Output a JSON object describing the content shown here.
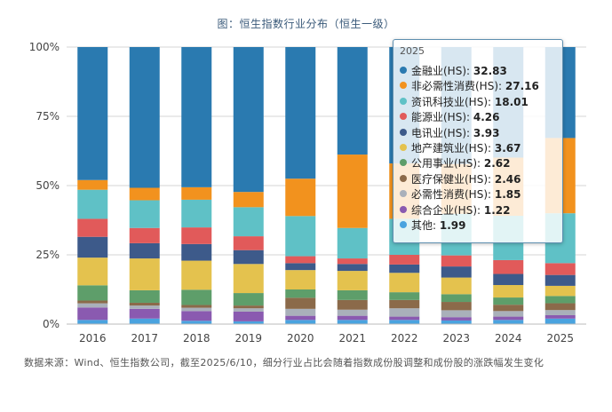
{
  "chart_data": {
    "type": "bar",
    "stacked": true,
    "percent": true,
    "title": "图：恒生指数行业分布（恒生一级）",
    "categories": [
      "2016",
      "2017",
      "2018",
      "2019",
      "2020",
      "2021",
      "2022",
      "2023",
      "2024",
      "2025"
    ],
    "ylim": [
      0,
      100
    ],
    "yticks": [
      "0%",
      "25%",
      "50%",
      "75%",
      "100%"
    ],
    "grid": true,
    "series": [
      {
        "name": "其他",
        "color": "#4aa3df",
        "values": [
          1.5,
          2.0,
          1.2,
          1.0,
          1.5,
          1.5,
          1.5,
          1.3,
          1.5,
          1.99
        ]
      },
      {
        "name": "综合企业",
        "color": "#8a5ab0",
        "values": [
          4.5,
          3.5,
          3.5,
          3.5,
          1.5,
          1.5,
          1.2,
          1.2,
          1.2,
          1.22
        ]
      },
      {
        "name": "必需性消费",
        "color": "#a9b0ba",
        "values": [
          1.5,
          1.2,
          1.2,
          1.2,
          2.5,
          2.2,
          3.0,
          2.5,
          2.0,
          1.85
        ]
      },
      {
        "name": "医疗保健业",
        "color": "#8b6a4a",
        "values": [
          1.0,
          1.0,
          1.0,
          1.0,
          4.0,
          3.5,
          3.0,
          3.0,
          2.3,
          2.46
        ]
      },
      {
        "name": "公用事业",
        "color": "#5e9e6a",
        "values": [
          5.5,
          4.5,
          5.5,
          4.5,
          3.0,
          3.5,
          2.8,
          2.8,
          2.6,
          2.62
        ]
      },
      {
        "name": "地产建筑业",
        "color": "#e4c24e",
        "values": [
          10.0,
          11.5,
          10.5,
          10.5,
          7.0,
          7.0,
          7.0,
          6.0,
          4.5,
          3.67
        ]
      },
      {
        "name": "电讯业",
        "color": "#3d5a8a",
        "values": [
          7.5,
          5.5,
          6.0,
          5.0,
          2.5,
          2.5,
          3.0,
          4.0,
          4.0,
          3.93
        ]
      },
      {
        "name": "能源业",
        "color": "#e15a5a",
        "values": [
          6.5,
          5.5,
          6.0,
          5.0,
          2.5,
          2.0,
          3.5,
          4.0,
          5.0,
          4.26
        ]
      },
      {
        "name": "资讯科技业",
        "color": "#5fc1c6",
        "values": [
          10.5,
          10.0,
          10.0,
          10.5,
          14.5,
          11.0,
          13.0,
          15.0,
          16.0,
          18.01
        ]
      },
      {
        "name": "非必需性消费",
        "color": "#f2921e",
        "values": [
          3.5,
          4.5,
          4.5,
          5.5,
          13.5,
          26.5,
          20.0,
          18.0,
          21.0,
          27.16
        ]
      },
      {
        "name": "金融业",
        "color": "#2a7ab0",
        "values": [
          48.0,
          50.8,
          50.6,
          52.3,
          47.5,
          38.8,
          42.0,
          42.2,
          39.9,
          32.83
        ]
      }
    ]
  },
  "tooltip": {
    "title": "2025",
    "items": [
      {
        "label": "金融业(HS)",
        "value": "32.83",
        "color": "#2a7ab0"
      },
      {
        "label": "非必需性消费(HS)",
        "value": "27.16",
        "color": "#f2921e"
      },
      {
        "label": "资讯科技业(HS)",
        "value": "18.01",
        "color": "#5fc1c6"
      },
      {
        "label": "能源业(HS)",
        "value": "4.26",
        "color": "#e15a5a"
      },
      {
        "label": "电讯业(HS)",
        "value": "3.93",
        "color": "#3d5a8a"
      },
      {
        "label": "地产建筑业(HS)",
        "value": "3.67",
        "color": "#e4c24e"
      },
      {
        "label": "公用事业(HS)",
        "value": "2.62",
        "color": "#5e9e6a"
      },
      {
        "label": "医疗保健业(HS)",
        "value": "2.46",
        "color": "#8b6a4a"
      },
      {
        "label": "必需性消费(HS)",
        "value": "1.85",
        "color": "#a9b0ba"
      },
      {
        "label": "综合企业(HS)",
        "value": "1.22",
        "color": "#8a5ab0"
      },
      {
        "label": "其他",
        "value": "1.99",
        "color": "#4aa3df"
      }
    ]
  },
  "footnote": "数据来源：Wind、恒生指数公司，截至2025/6/10，细分行业占比会随着指数成份股调整和成份股的涨跌幅发生变化"
}
